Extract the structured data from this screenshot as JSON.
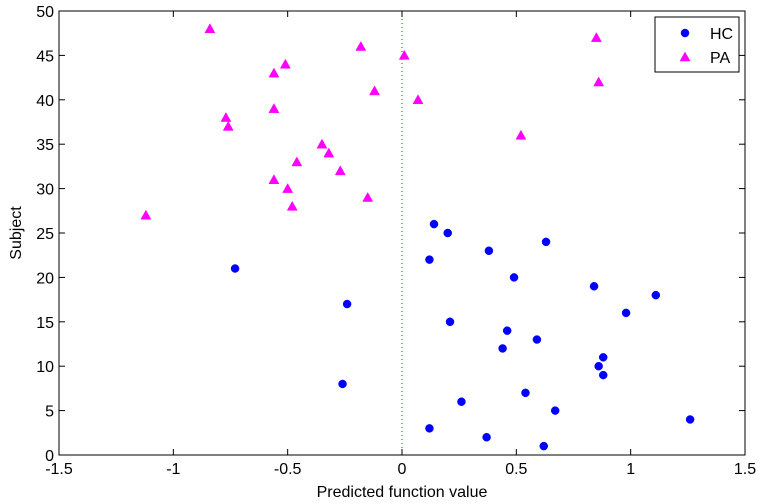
{
  "chart_data": {
    "type": "scatter",
    "title": "",
    "xlabel": "Predicted function value",
    "ylabel": "Subject",
    "xlim": [
      -1.5,
      1.5
    ],
    "ylim": [
      0,
      50
    ],
    "xticks": [
      -1.5,
      -1,
      -0.5,
      0,
      0.5,
      1,
      1.5
    ],
    "xtick_labels": [
      "-1.5",
      "-1",
      "-0.5",
      "0",
      "0.5",
      "1",
      "1.5"
    ],
    "yticks": [
      0,
      5,
      10,
      15,
      20,
      25,
      30,
      35,
      40,
      45,
      50
    ],
    "ytick_labels": [
      "0",
      "5",
      "10",
      "15",
      "20",
      "25",
      "30",
      "35",
      "40",
      "45",
      "50"
    ],
    "grid": false,
    "legend_position": "top-right",
    "reference_line": {
      "x": 0,
      "style": "dotted",
      "color": "#cc0000"
    },
    "series": [
      {
        "name": "HC",
        "marker": "circle",
        "color": "#0000ff",
        "points": [
          {
            "x": 0.62,
            "y": 1
          },
          {
            "x": 0.37,
            "y": 2
          },
          {
            "x": 0.12,
            "y": 3
          },
          {
            "x": 1.26,
            "y": 4
          },
          {
            "x": 0.67,
            "y": 5
          },
          {
            "x": 0.26,
            "y": 6
          },
          {
            "x": 0.54,
            "y": 7
          },
          {
            "x": -0.26,
            "y": 8
          },
          {
            "x": 0.88,
            "y": 9
          },
          {
            "x": 0.86,
            "y": 10
          },
          {
            "x": 0.88,
            "y": 11
          },
          {
            "x": 0.44,
            "y": 12
          },
          {
            "x": 0.59,
            "y": 13
          },
          {
            "x": 0.46,
            "y": 14
          },
          {
            "x": 0.21,
            "y": 15
          },
          {
            "x": 0.98,
            "y": 16
          },
          {
            "x": -0.24,
            "y": 17
          },
          {
            "x": 1.11,
            "y": 18
          },
          {
            "x": 0.84,
            "y": 19
          },
          {
            "x": 0.49,
            "y": 20
          },
          {
            "x": -0.73,
            "y": 21
          },
          {
            "x": 0.12,
            "y": 22
          },
          {
            "x": 0.38,
            "y": 23
          },
          {
            "x": 0.63,
            "y": 24
          },
          {
            "x": 0.2,
            "y": 25
          },
          {
            "x": 0.14,
            "y": 26
          }
        ]
      },
      {
        "name": "PA",
        "marker": "triangle",
        "color": "#ff00ff",
        "points": [
          {
            "x": -1.12,
            "y": 27
          },
          {
            "x": -0.48,
            "y": 28
          },
          {
            "x": -0.15,
            "y": 29
          },
          {
            "x": -0.5,
            "y": 30
          },
          {
            "x": -0.56,
            "y": 31
          },
          {
            "x": -0.27,
            "y": 32
          },
          {
            "x": -0.46,
            "y": 33
          },
          {
            "x": -0.32,
            "y": 34
          },
          {
            "x": -0.35,
            "y": 35
          },
          {
            "x": 0.52,
            "y": 36
          },
          {
            "x": -0.76,
            "y": 37
          },
          {
            "x": -0.77,
            "y": 38
          },
          {
            "x": -0.56,
            "y": 39
          },
          {
            "x": 0.07,
            "y": 40
          },
          {
            "x": -0.12,
            "y": 41
          },
          {
            "x": 0.86,
            "y": 42
          },
          {
            "x": -0.56,
            "y": 43
          },
          {
            "x": -0.51,
            "y": 44
          },
          {
            "x": 0.01,
            "y": 45
          },
          {
            "x": -0.18,
            "y": 46
          },
          {
            "x": 0.85,
            "y": 47
          },
          {
            "x": -0.84,
            "y": 48
          }
        ]
      }
    ]
  }
}
